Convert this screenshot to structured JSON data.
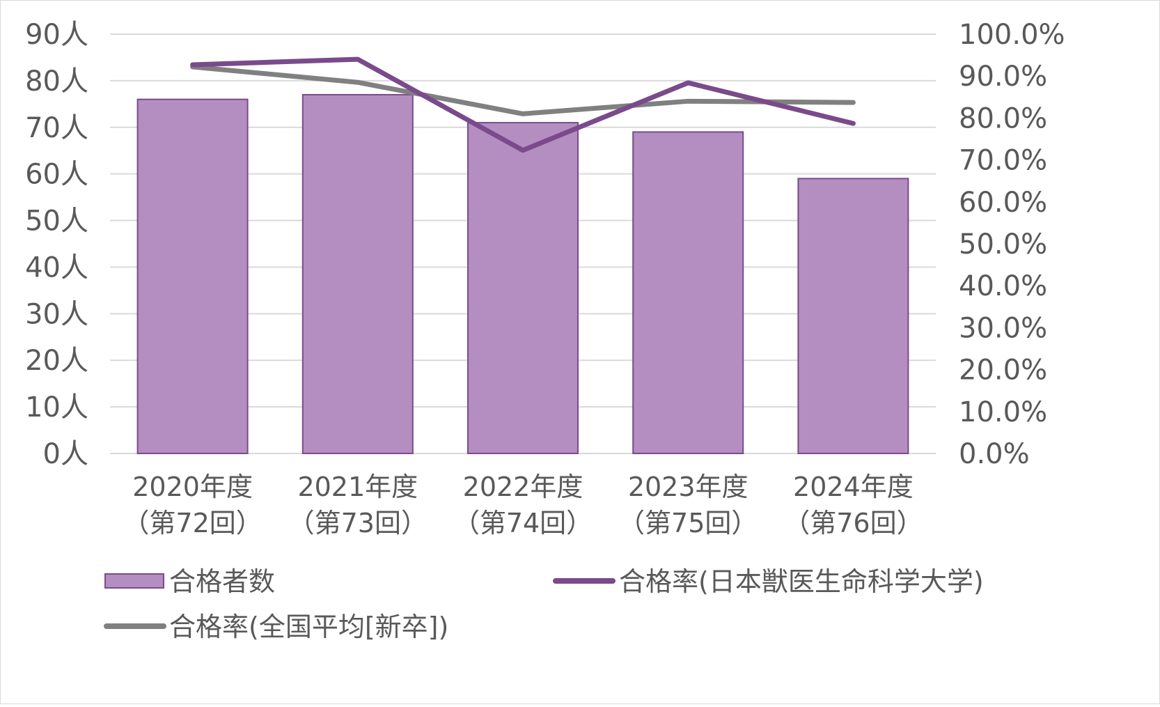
{
  "chart_data": {
    "type": "bar",
    "categories": [
      [
        "2020年度",
        "（第72回）"
      ],
      [
        "2021年度",
        "（第73回）"
      ],
      [
        "2022年度",
        "（第74回）"
      ],
      [
        "2023年度",
        "（第75回）"
      ],
      [
        "2024年度",
        "（第76回）"
      ]
    ],
    "series": [
      {
        "name": "合格者数",
        "type": "bar",
        "axis": "left",
        "values": [
          76,
          77,
          71,
          69,
          59
        ],
        "color": "#b48ec0",
        "stroke": "#7a4a8c"
      },
      {
        "name": "合格率(日本獣医生命科学大学)",
        "type": "line",
        "axis": "right",
        "values": [
          92.7,
          94.0,
          72.3,
          88.4,
          78.7
        ],
        "color": "#7a4a8c"
      },
      {
        "name": "合格率(全国平均[新卒])",
        "type": "line",
        "axis": "right",
        "values": [
          92.2,
          88.5,
          81.0,
          84.0,
          83.7
        ],
        "color": "#808080"
      }
    ],
    "y_left": {
      "min": 0,
      "max": 90,
      "step": 10,
      "suffix": "人"
    },
    "y_right": {
      "min": 0,
      "max": 100,
      "step": 10,
      "suffix": "%",
      "decimals": 1
    },
    "grid": true,
    "legend_position": "bottom"
  }
}
